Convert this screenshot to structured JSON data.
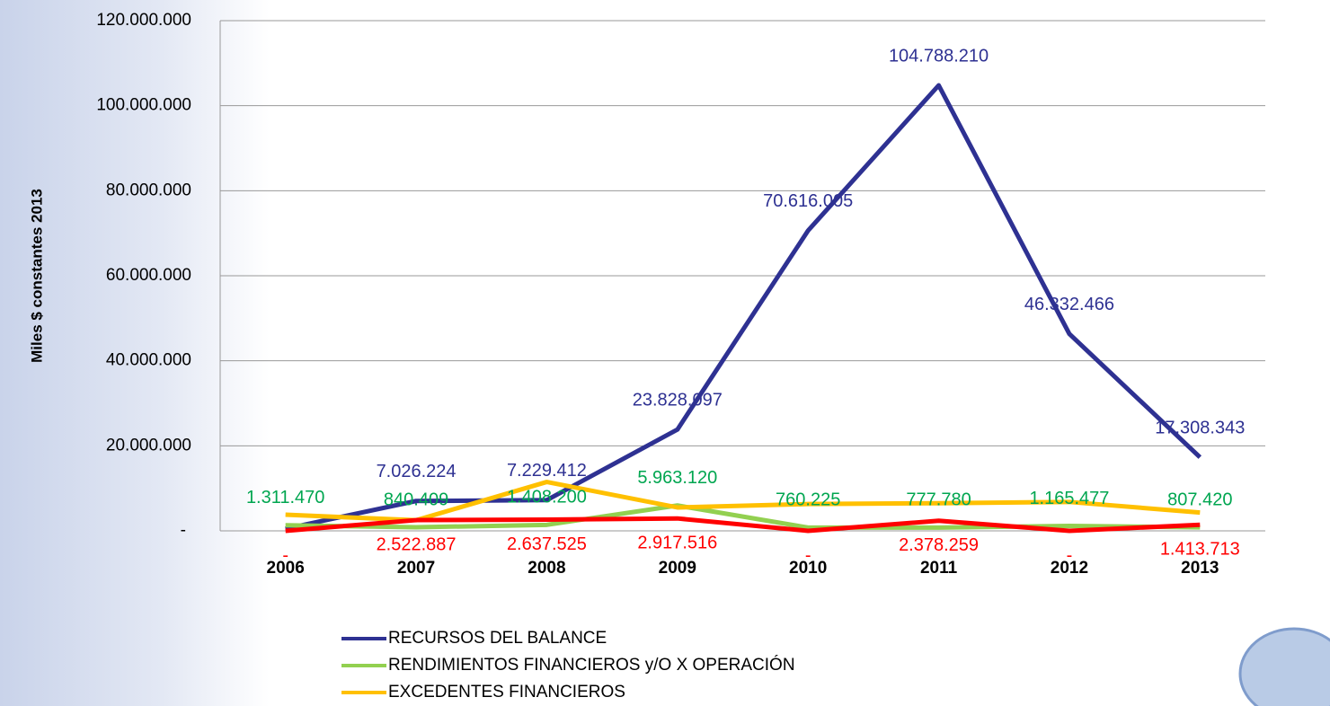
{
  "chart_data": {
    "type": "line",
    "y_label": "Miles $ constantes 2013",
    "categories": [
      "2006",
      "2007",
      "2008",
      "2009",
      "2010",
      "2011",
      "2012",
      "2013"
    ],
    "ylim": [
      0,
      120000000
    ],
    "yticks": [
      {
        "value": 0,
        "label": "-"
      },
      {
        "value": 20000000,
        "label": "20.000.000"
      },
      {
        "value": 40000000,
        "label": "40.000.000"
      },
      {
        "value": 60000000,
        "label": "60.000.000"
      },
      {
        "value": 80000000,
        "label": "80.000.000"
      },
      {
        "value": 100000000,
        "label": "100.000.000"
      },
      {
        "value": 120000000,
        "label": "120.000.000"
      }
    ],
    "grid": true,
    "series": [
      {
        "name": "RECURSOS DEL BALANCE",
        "color": "#2e3192",
        "values": [
          500000,
          7026224,
          7229412,
          23828097,
          70616005,
          104788210,
          46332466,
          17308343
        ],
        "value_labels": [
          null,
          "7.026.224",
          "7.229.412",
          "23.828.097",
          "70.616.005",
          "104.788.210",
          "46.332.466",
          "17.308.343"
        ]
      },
      {
        "name": "RENDIMIENTOS FINANCIEROS y/O X OPERACIÓN",
        "color": "#92d050",
        "values": [
          1311470,
          840409,
          1408200,
          5963120,
          760225,
          777780,
          1165477,
          807420
        ],
        "value_labels": [
          "1.311.470",
          "840.409",
          "1.408.200",
          "5.963.120",
          "760.225",
          "777.780",
          "1.165.477",
          "807.420"
        ]
      },
      {
        "name": "EXCEDENTES FINANCIEROS",
        "color": "#ffc000",
        "values": [
          3800000,
          2500000,
          11500000,
          5500000,
          6300000,
          6500000,
          6800000,
          4300000
        ]
      },
      {
        "color": "#ff0000",
        "values": [
          0,
          2522887,
          2637525,
          2917516,
          0,
          2378259,
          0,
          1413713
        ],
        "value_labels": [
          "-",
          "2.522.887",
          "2.637.525",
          "2.917.516",
          "-",
          "2.378.259",
          "-",
          "1.413.713"
        ]
      }
    ]
  }
}
